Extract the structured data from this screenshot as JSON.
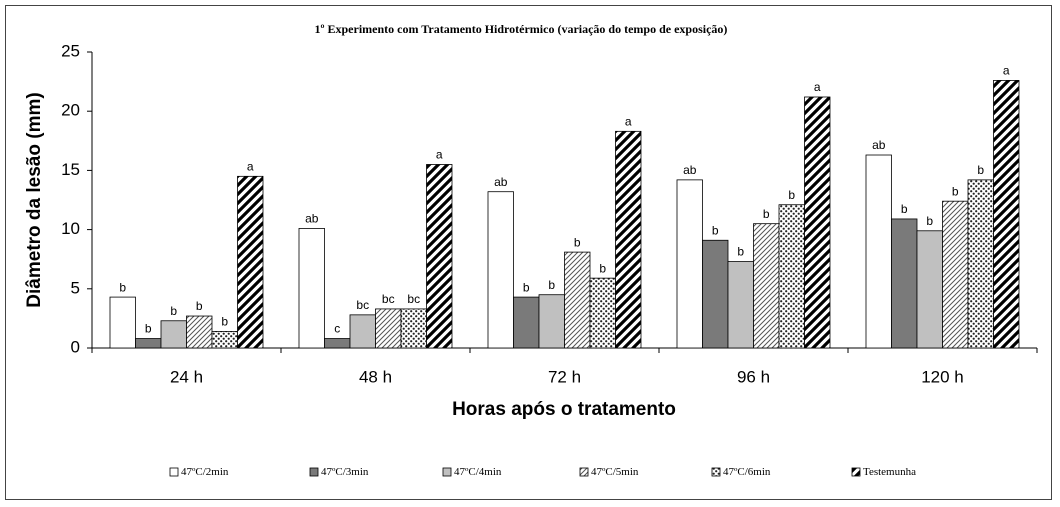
{
  "chart_data": {
    "type": "bar",
    "title": "1º Experimento com Tratamento Hidrotérmico (variação do tempo de exposição)",
    "x_label": "Horas após o tratamento",
    "y_label": "Diâmetro da lesão (mm)",
    "categories": [
      "24 h",
      "48 h",
      "72 h",
      "96 h",
      "120 h"
    ],
    "ylim": [
      0,
      25
    ],
    "yticks": [
      0,
      5,
      10,
      15,
      20,
      25
    ],
    "grid": false,
    "legend": "bottom",
    "series": [
      {
        "name": "47ºC/2min",
        "color": "#ffffff",
        "pattern": "solid",
        "values": [
          4.3,
          10.1,
          13.2,
          14.2,
          16.3
        ],
        "letters": [
          "b",
          "ab",
          "ab",
          "ab",
          "ab"
        ]
      },
      {
        "name": "47ºC/3min",
        "color": "#7a7a7a",
        "pattern": "solid",
        "values": [
          0.8,
          0.8,
          4.3,
          9.1,
          10.9
        ],
        "letters": [
          "b",
          "c",
          "b",
          "b",
          "b"
        ]
      },
      {
        "name": "47ºC/4min",
        "color": "#c0c0c0",
        "pattern": "solid",
        "values": [
          2.3,
          2.8,
          4.5,
          7.3,
          9.9
        ],
        "letters": [
          "b",
          "bc",
          "b",
          "b",
          "b"
        ]
      },
      {
        "name": "47ºC/5min",
        "color": "#555555",
        "pattern": "hatch",
        "values": [
          2.7,
          3.3,
          8.1,
          10.5,
          12.4
        ],
        "letters": [
          "b",
          "bc",
          "b",
          "b",
          "b"
        ]
      },
      {
        "name": "47ºC/6min",
        "color": "#222222",
        "pattern": "dots",
        "values": [
          1.4,
          3.3,
          5.9,
          12.1,
          14.2
        ],
        "letters": [
          "b",
          "bc",
          "b",
          "b",
          "b"
        ]
      },
      {
        "name": "Testemunha",
        "color": "#000000",
        "pattern": "stripes",
        "values": [
          14.5,
          15.5,
          18.3,
          21.2,
          22.6
        ],
        "letters": [
          "a",
          "a",
          "a",
          "a",
          "a"
        ]
      }
    ]
  }
}
